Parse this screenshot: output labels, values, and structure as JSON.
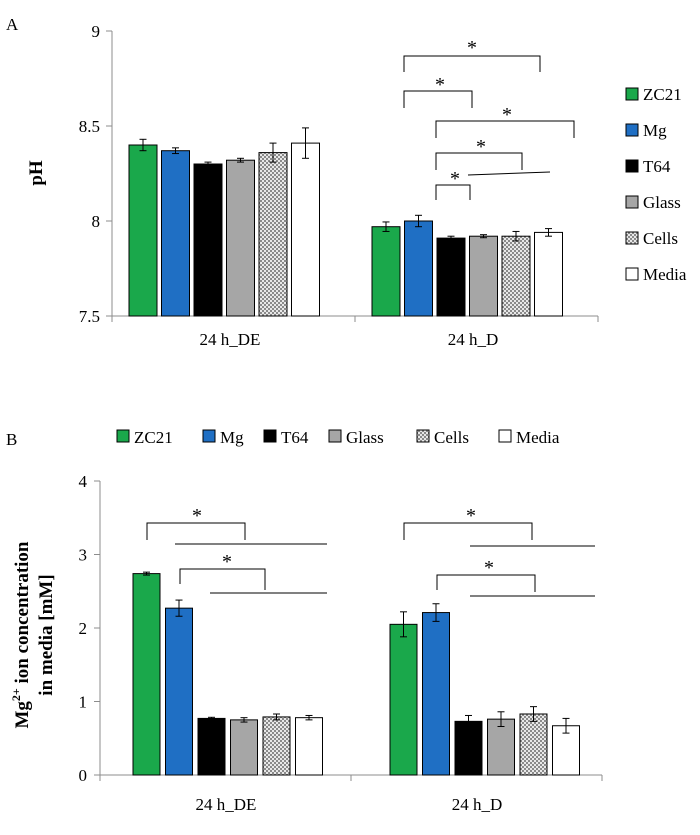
{
  "colors": {
    "ZC21": "#1aa84b",
    "Mg": "#1f6fc4",
    "T64": "#000000",
    "Glass": "#a6a6a6",
    "Cells": "#e8e8e8",
    "Media": "#ffffff"
  },
  "chart_data": [
    {
      "type": "bar",
      "panel_label": "A",
      "ylabel": "pH",
      "categories": [
        "24 h_DE",
        "24 h_D"
      ],
      "ylim": [
        7.5,
        9
      ],
      "yticks": [
        "7.5",
        "8",
        "8.5",
        "9"
      ],
      "legend_position": "right",
      "series": [
        {
          "name": "ZC21",
          "values": [
            8.4,
            7.97
          ],
          "errors": [
            0.03,
            0.025
          ]
        },
        {
          "name": "Mg",
          "values": [
            8.37,
            8.0
          ],
          "errors": [
            0.015,
            0.03
          ]
        },
        {
          "name": "T64",
          "values": [
            8.3,
            7.91
          ],
          "errors": [
            0.01,
            0.01
          ]
        },
        {
          "name": "Glass",
          "values": [
            8.32,
            7.92
          ],
          "errors": [
            0.01,
            0.008
          ]
        },
        {
          "name": "Cells",
          "values": [
            8.36,
            7.92
          ],
          "errors": [
            0.05,
            0.025
          ]
        },
        {
          "name": "Media",
          "values": [
            8.41,
            7.94
          ],
          "errors": [
            0.08,
            0.02
          ]
        }
      ],
      "significance": [
        "*",
        "*",
        "*",
        "*",
        "*"
      ]
    },
    {
      "type": "bar",
      "panel_label": "B",
      "ylabel": "Mg",
      "ylabel_sup": "2+",
      "ylabel_line1_rest": " ion concentration",
      "ylabel_line2": "in media [mM]",
      "categories": [
        "24 h_DE",
        "24 h_D"
      ],
      "ylim": [
        0,
        4
      ],
      "yticks": [
        "0",
        "1",
        "2",
        "3",
        "4"
      ],
      "legend_position": "top",
      "series": [
        {
          "name": "ZC21",
          "values": [
            2.74,
            2.05
          ],
          "errors": [
            0.02,
            0.17
          ]
        },
        {
          "name": "Mg",
          "values": [
            2.27,
            2.21
          ],
          "errors": [
            0.11,
            0.12
          ]
        },
        {
          "name": "T64",
          "values": [
            0.77,
            0.73
          ],
          "errors": [
            0.015,
            0.08
          ]
        },
        {
          "name": "Glass",
          "values": [
            0.75,
            0.76
          ],
          "errors": [
            0.03,
            0.1
          ]
        },
        {
          "name": "Cells",
          "values": [
            0.79,
            0.83
          ],
          "errors": [
            0.04,
            0.1
          ]
        },
        {
          "name": "Media",
          "values": [
            0.78,
            0.67
          ],
          "errors": [
            0.03,
            0.1
          ]
        }
      ],
      "significance": [
        "*",
        "*",
        "*",
        "*"
      ]
    }
  ]
}
